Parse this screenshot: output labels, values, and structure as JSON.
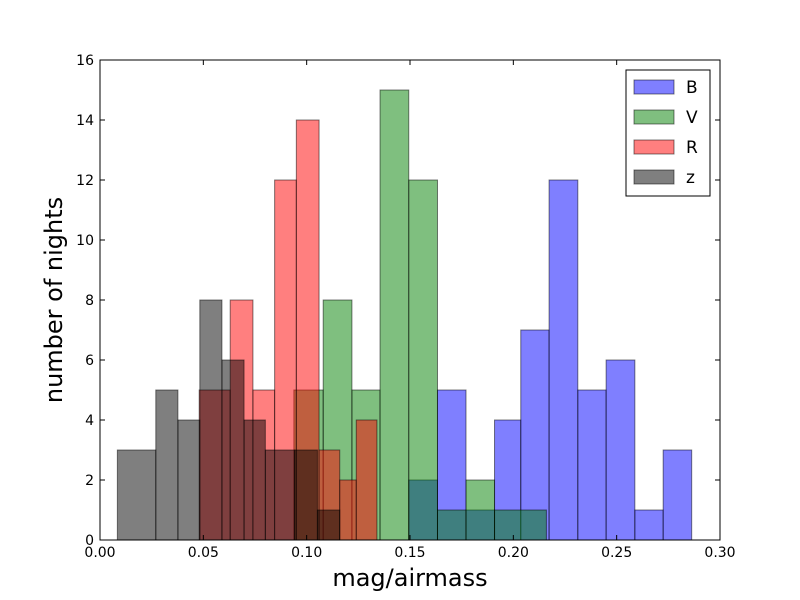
{
  "chart_data": {
    "type": "histogram",
    "title": "",
    "xlabel": "mag/airmass",
    "ylabel": "number of nights",
    "xlim": [
      0.0,
      0.3
    ],
    "ylim": [
      0,
      16
    ],
    "xticks": [
      0.0,
      0.05,
      0.1,
      0.15,
      0.2,
      0.25,
      0.3
    ],
    "xtick_labels": [
      "0.00",
      "0.05",
      "0.10",
      "0.15",
      "0.20",
      "0.25",
      "0.30"
    ],
    "yticks": [
      0,
      2,
      4,
      6,
      8,
      10,
      12,
      14,
      16
    ],
    "ytick_labels": [
      "0",
      "2",
      "4",
      "6",
      "8",
      "10",
      "12",
      "14",
      "16"
    ],
    "grid": false,
    "legend_position": "top-right",
    "alpha": 0.5,
    "series": [
      {
        "name": "B",
        "color": "#0000ff",
        "bins": [
          [
            0.1494,
            0.1633,
            2
          ],
          [
            0.1633,
            0.1771,
            5
          ],
          [
            0.1771,
            0.1909,
            1
          ],
          [
            0.1909,
            0.2036,
            4
          ],
          [
            0.2036,
            0.2173,
            7
          ],
          [
            0.2173,
            0.2312,
            12
          ],
          [
            0.2312,
            0.2449,
            5
          ],
          [
            0.2449,
            0.2588,
            6
          ],
          [
            0.2588,
            0.2725,
            1
          ],
          [
            0.2725,
            0.2863,
            3
          ]
        ]
      },
      {
        "name": "V",
        "color": "#008000",
        "bins": [
          [
            0.0938,
            0.108,
            5
          ],
          [
            0.108,
            0.1219,
            8
          ],
          [
            0.1219,
            0.1355,
            5
          ],
          [
            0.1355,
            0.1494,
            15
          ],
          [
            0.1494,
            0.1633,
            12
          ],
          [
            0.1633,
            0.1771,
            1
          ],
          [
            0.1771,
            0.1909,
            2
          ],
          [
            0.1909,
            0.216,
            1
          ]
        ]
      },
      {
        "name": "R",
        "color": "#ff0000",
        "bins": [
          [
            0.048,
            0.063,
            5
          ],
          [
            0.063,
            0.074,
            8
          ],
          [
            0.074,
            0.0845,
            5
          ],
          [
            0.0845,
            0.095,
            12
          ],
          [
            0.095,
            0.106,
            14
          ],
          [
            0.106,
            0.116,
            3
          ],
          [
            0.116,
            0.124,
            2
          ],
          [
            0.124,
            0.134,
            4
          ]
        ]
      },
      {
        "name": "z",
        "color": "#000000",
        "bins": [
          [
            0.0084,
            0.027,
            3
          ],
          [
            0.027,
            0.0377,
            5
          ],
          [
            0.0377,
            0.0483,
            4
          ],
          [
            0.0483,
            0.059,
            8
          ],
          [
            0.059,
            0.0697,
            6
          ],
          [
            0.0697,
            0.08,
            4
          ],
          [
            0.08,
            0.0942,
            3
          ],
          [
            0.0942,
            0.1052,
            3
          ],
          [
            0.1052,
            0.116,
            1
          ]
        ]
      }
    ]
  }
}
